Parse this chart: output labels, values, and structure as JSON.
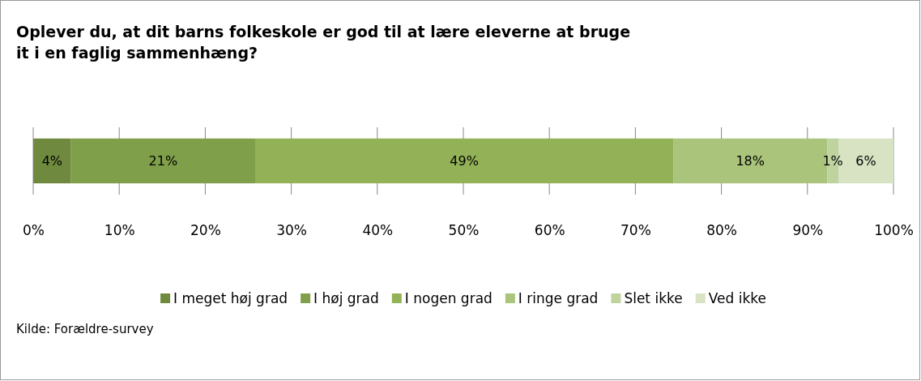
{
  "chart_data": {
    "type": "bar",
    "orientation": "horizontal",
    "stacked": true,
    "title": "Oplever du, at dit barns folkeskole er god til at lære eleverne at bruge it i en faglig sammenhæng?",
    "categories": [
      null
    ],
    "series": [
      {
        "name": "I meget høj grad",
        "color": "#6f8a3e",
        "values": [
          4.4
        ],
        "value_labels": [
          "4%"
        ]
      },
      {
        "name": "I høj grad",
        "color": "#809f4a",
        "values": [
          21.4
        ],
        "value_labels": [
          "21%"
        ]
      },
      {
        "name": "I nogen grad",
        "color": "#93b257",
        "values": [
          48.6
        ],
        "value_labels": [
          "49%"
        ]
      },
      {
        "name": "I ringe grad",
        "color": "#aac47c",
        "values": [
          17.9
        ],
        "value_labels": [
          "18%"
        ]
      },
      {
        "name": "Slet ikke",
        "color": "#bed39e",
        "values": [
          1.3
        ],
        "value_labels": [
          "1%"
        ]
      },
      {
        "name": "Ved ikke",
        "color": "#d7e3c2",
        "values": [
          6.4
        ],
        "value_labels": [
          "6%"
        ]
      }
    ],
    "xlim": [
      0,
      100
    ],
    "xticks": [
      {
        "value": 0,
        "label": "0%"
      },
      {
        "value": 10,
        "label": "10%"
      },
      {
        "value": 20,
        "label": "20%"
      },
      {
        "value": 30,
        "label": "30%"
      },
      {
        "value": 40,
        "label": "40%"
      },
      {
        "value": 50,
        "label": "50%"
      },
      {
        "value": 60,
        "label": "60%"
      },
      {
        "value": 70,
        "label": "70%"
      },
      {
        "value": 80,
        "label": "80%"
      },
      {
        "value": 90,
        "label": "90%"
      },
      {
        "value": 100,
        "label": "100%"
      }
    ],
    "grid": "x",
    "legend": "bottom",
    "annotations": [
      "Kilde: Forældre-survey"
    ]
  }
}
